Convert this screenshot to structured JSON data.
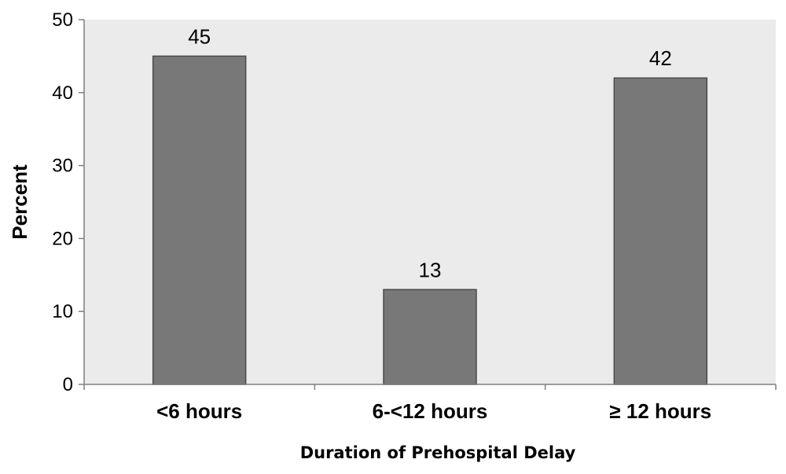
{
  "chart_data": {
    "type": "bar",
    "categories": [
      "<6 hours",
      "6-<12 hours",
      "≥ 12 hours"
    ],
    "values": [
      45,
      13,
      42
    ],
    "data_labels": [
      "45",
      "13",
      "42"
    ],
    "xlabel": "Duration of Prehospital Delay",
    "ylabel": "Percent",
    "ylim": [
      0,
      50
    ],
    "yticks": [
      0,
      10,
      20,
      30,
      40,
      50
    ],
    "grid": false,
    "colors": {
      "bar_fill": "#787878",
      "bar_stroke": "#4a4a4a",
      "plot_background": "#ebebeb",
      "axis": "#7f7f7f"
    }
  }
}
